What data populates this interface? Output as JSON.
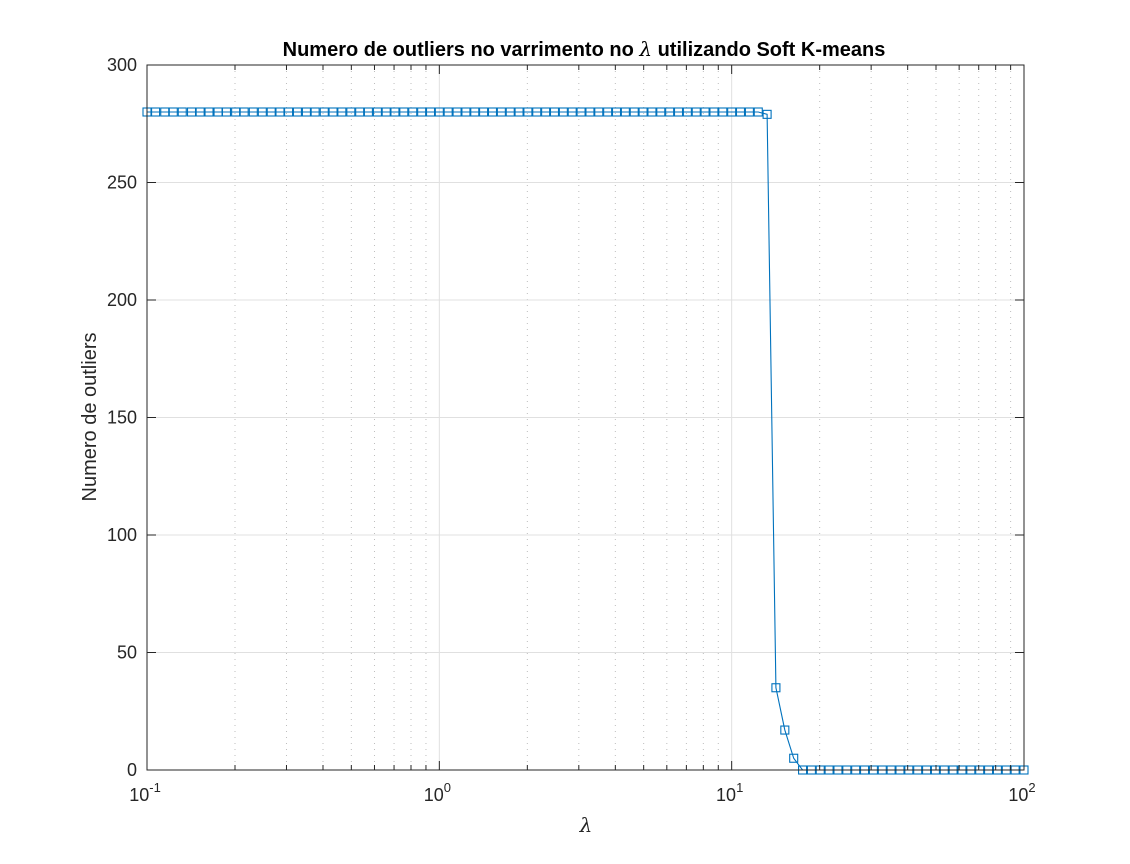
{
  "chart_data": {
    "type": "line",
    "title_prefix": "Numero de outliers no varrimento no ",
    "title_symbol": "λ",
    "title_suffix": " utilizando Soft K-means",
    "xlabel": "λ",
    "ylabel": "Numero de outliers",
    "xscale": "log",
    "xlim": [
      0.1,
      100
    ],
    "ylim": [
      0,
      300
    ],
    "xtick_labels": [
      {
        "base": "10",
        "exp": "-1",
        "value": 0.1
      },
      {
        "base": "10",
        "exp": "0",
        "value": 1
      },
      {
        "base": "10",
        "exp": "1",
        "value": 10
      },
      {
        "base": "10",
        "exp": "2",
        "value": 100
      }
    ],
    "ytick_labels": [
      "0",
      "50",
      "100",
      "150",
      "200",
      "250",
      "300"
    ],
    "grid": true,
    "minor_grid": true,
    "marker": "square",
    "line_color": "#0072BD",
    "series": [
      {
        "points": [
          [
            0.1,
            280
          ],
          [
            0.107,
            280
          ],
          [
            0.115,
            280
          ],
          [
            0.123,
            280
          ],
          [
            0.132,
            280
          ],
          [
            0.142,
            280
          ],
          [
            0.152,
            280
          ],
          [
            0.163,
            280
          ],
          [
            0.175,
            280
          ],
          [
            0.187,
            280
          ],
          [
            0.201,
            280
          ],
          [
            0.215,
            280
          ],
          [
            0.231,
            280
          ],
          [
            0.248,
            280
          ],
          [
            0.266,
            280
          ],
          [
            0.285,
            280
          ],
          [
            0.305,
            280
          ],
          [
            0.327,
            280
          ],
          [
            0.351,
            280
          ],
          [
            0.376,
            280
          ],
          [
            0.404,
            280
          ],
          [
            0.433,
            280
          ],
          [
            0.464,
            280
          ],
          [
            0.498,
            280
          ],
          [
            0.534,
            280
          ],
          [
            0.572,
            280
          ],
          [
            0.614,
            280
          ],
          [
            0.658,
            280
          ],
          [
            0.705,
            280
          ],
          [
            0.756,
            280
          ],
          [
            0.811,
            280
          ],
          [
            0.87,
            280
          ],
          [
            0.933,
            280
          ],
          [
            1.0,
            280
          ],
          [
            1.072,
            280
          ],
          [
            1.15,
            280
          ],
          [
            1.233,
            280
          ],
          [
            1.322,
            280
          ],
          [
            1.417,
            280
          ],
          [
            1.52,
            280
          ],
          [
            1.63,
            280
          ],
          [
            1.748,
            280
          ],
          [
            1.874,
            280
          ],
          [
            2.009,
            280
          ],
          [
            2.154,
            280
          ],
          [
            2.31,
            280
          ],
          [
            2.477,
            280
          ],
          [
            2.656,
            280
          ],
          [
            2.848,
            280
          ],
          [
            3.054,
            280
          ],
          [
            3.275,
            280
          ],
          [
            3.511,
            280
          ],
          [
            3.765,
            280
          ],
          [
            4.037,
            280
          ],
          [
            4.329,
            280
          ],
          [
            4.642,
            280
          ],
          [
            4.977,
            280
          ],
          [
            5.337,
            280
          ],
          [
            5.722,
            280
          ],
          [
            6.136,
            280
          ],
          [
            6.579,
            280
          ],
          [
            7.055,
            280
          ],
          [
            7.565,
            280
          ],
          [
            8.111,
            280
          ],
          [
            8.697,
            280
          ],
          [
            9.326,
            280
          ],
          [
            10.0,
            280
          ],
          [
            10.72,
            280
          ],
          [
            11.5,
            280
          ],
          [
            12.33,
            280
          ],
          [
            13.22,
            279
          ],
          [
            14.17,
            35
          ],
          [
            15.2,
            17
          ],
          [
            16.3,
            5
          ],
          [
            17.48,
            0
          ],
          [
            18.74,
            0
          ],
          [
            20.09,
            0
          ],
          [
            21.54,
            0
          ],
          [
            23.1,
            0
          ],
          [
            24.77,
            0
          ],
          [
            26.56,
            0
          ],
          [
            28.48,
            0
          ],
          [
            30.54,
            0
          ],
          [
            32.75,
            0
          ],
          [
            35.11,
            0
          ],
          [
            37.65,
            0
          ],
          [
            40.37,
            0
          ],
          [
            43.29,
            0
          ],
          [
            46.42,
            0
          ],
          [
            49.77,
            0
          ],
          [
            53.37,
            0
          ],
          [
            57.22,
            0
          ],
          [
            61.36,
            0
          ],
          [
            65.79,
            0
          ],
          [
            70.55,
            0
          ],
          [
            75.65,
            0
          ],
          [
            81.11,
            0
          ],
          [
            86.97,
            0
          ],
          [
            93.26,
            0
          ],
          [
            100.0,
            0
          ]
        ]
      }
    ]
  }
}
